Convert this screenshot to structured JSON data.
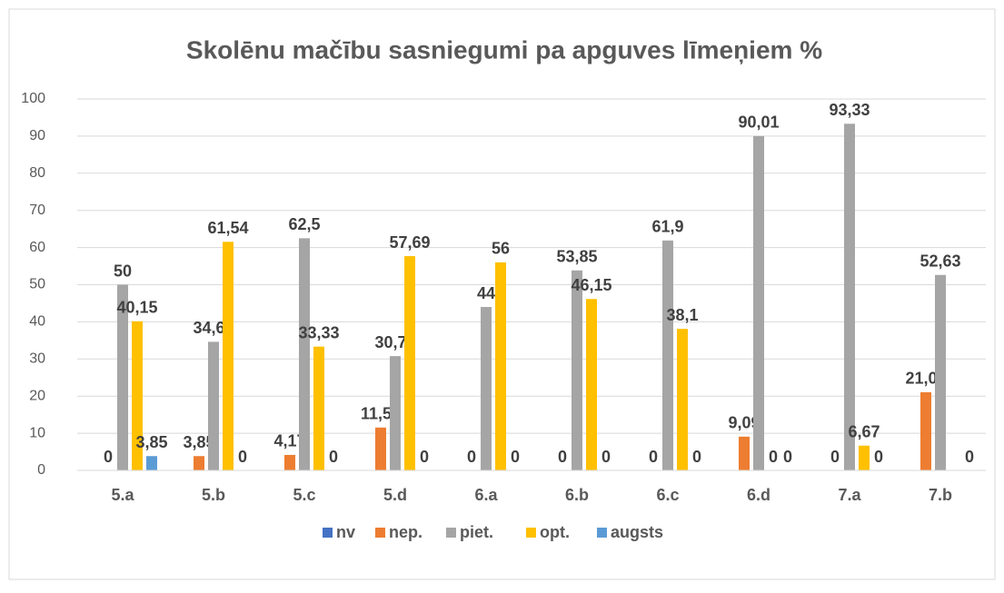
{
  "chart_data": {
    "type": "bar",
    "title": "Skolēnu mačību sasniegumi pa apguves līmeņiem %",
    "categories": [
      "5.a",
      "5.b",
      "5.c",
      "5.d",
      "6.a",
      "6.b",
      "6.c",
      "6.d",
      "7.a",
      "7.b"
    ],
    "series": [
      {
        "name": "nv",
        "color": "#4472c4",
        "values": [
          null,
          null,
          null,
          null,
          null,
          null,
          null,
          null,
          null,
          null
        ]
      },
      {
        "name": "nep.",
        "color": "#ed7d31",
        "values": [
          0,
          3.85,
          4.17,
          11.54,
          0,
          0,
          0,
          9.09,
          0,
          21.05
        ],
        "value_labels": [
          "0",
          "3,85",
          "4,17",
          "11,54",
          "0",
          "0",
          "0",
          "9,09",
          "0",
          "21,05"
        ]
      },
      {
        "name": "piet.",
        "color": "#a5a5a5",
        "values": [
          50,
          34.62,
          62.5,
          30.77,
          44,
          53.85,
          61.9,
          90.01,
          93.33,
          52.63
        ],
        "value_labels": [
          "50",
          "34,62",
          "62,5",
          "30,77",
          "44",
          "53,85",
          "61,9",
          "90,01",
          "93,33",
          "52,63"
        ]
      },
      {
        "name": "opt.",
        "color": "#ffc000",
        "values": [
          40.15,
          61.54,
          33.33,
          57.69,
          56,
          46.15,
          38.1,
          0,
          6.67,
          null
        ],
        "value_labels": [
          "40,15",
          "61,54",
          "33,33",
          "57,69",
          "56",
          "46,15",
          "38,1",
          "0",
          "6,67",
          null
        ]
      },
      {
        "name": "augsts",
        "color": "#5b9bd5",
        "values": [
          3.85,
          0,
          0,
          0,
          0,
          0,
          0,
          0,
          0,
          0
        ],
        "value_labels": [
          "3,85",
          "0",
          "0",
          "0",
          "0",
          "0",
          "0",
          "0",
          "0",
          "0"
        ]
      }
    ],
    "ylim": [
      0,
      100
    ],
    "yticks": [
      0,
      10,
      20,
      30,
      40,
      50,
      60,
      70,
      80,
      90,
      100
    ],
    "grid": true,
    "legend": "bottom"
  }
}
